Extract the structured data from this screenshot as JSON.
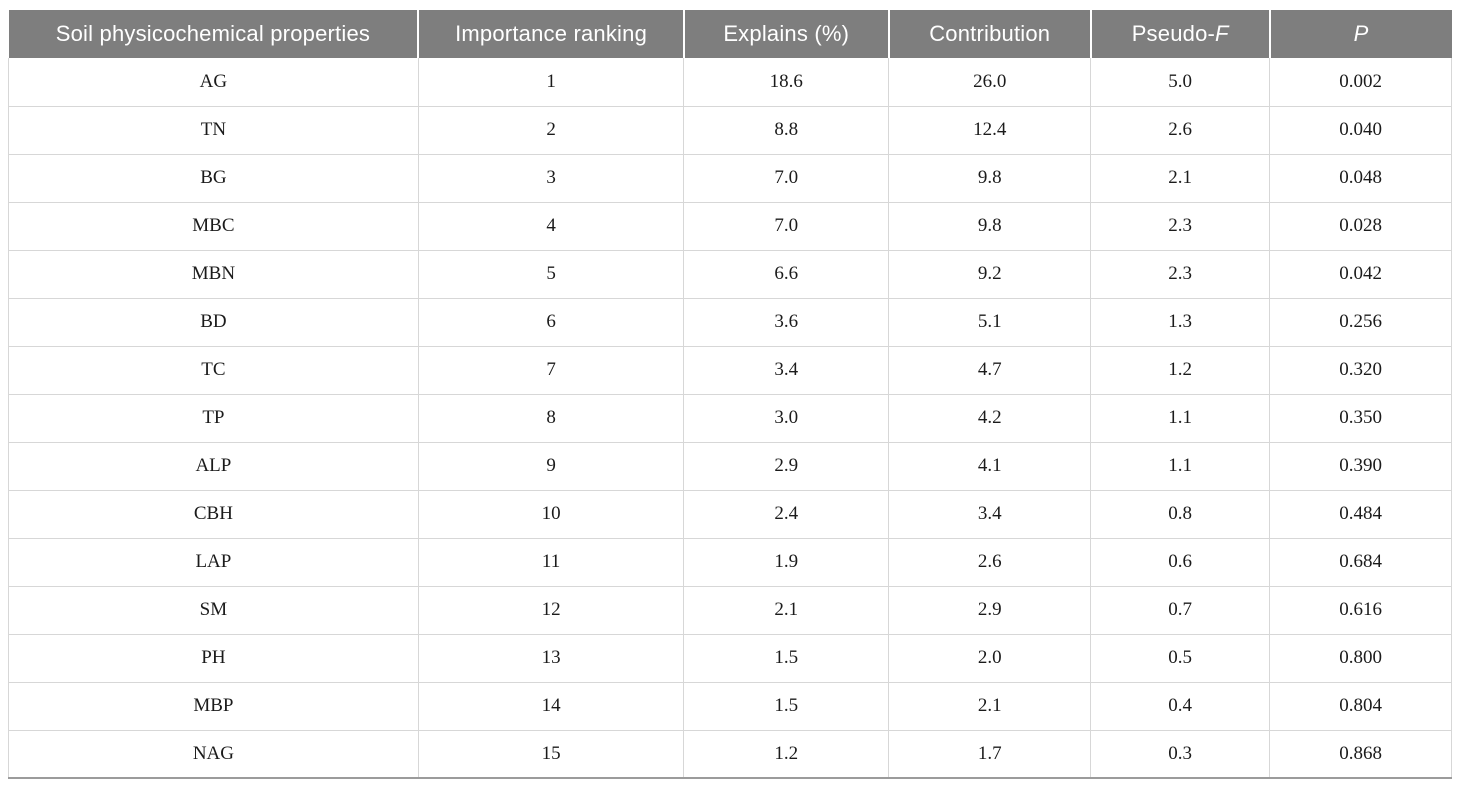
{
  "page": {
    "background_color": "#ffffff"
  },
  "table": {
    "header_bg": "#7e7e7e",
    "header_text_color": "#ffffff",
    "columns": [
      {
        "label": "Soil physicochemical properties"
      },
      {
        "label": "Importance ranking"
      },
      {
        "label": "Explains (%)"
      },
      {
        "label": "Contribution"
      },
      {
        "label_prefix": "Pseudo-",
        "label_italic": "F"
      },
      {
        "label_italic": "P"
      }
    ],
    "rows": [
      [
        "AG",
        "1",
        "18.6",
        "26.0",
        "5.0",
        "0.002"
      ],
      [
        "TN",
        "2",
        "8.8",
        "12.4",
        "2.6",
        "0.040"
      ],
      [
        "BG",
        "3",
        "7.0",
        "9.8",
        "2.1",
        "0.048"
      ],
      [
        "MBC",
        "4",
        "7.0",
        "9.8",
        "2.3",
        "0.028"
      ],
      [
        "MBN",
        "5",
        "6.6",
        "9.2",
        "2.3",
        "0.042"
      ],
      [
        "BD",
        "6",
        "3.6",
        "5.1",
        "1.3",
        "0.256"
      ],
      [
        "TC",
        "7",
        "3.4",
        "4.7",
        "1.2",
        "0.320"
      ],
      [
        "TP",
        "8",
        "3.0",
        "4.2",
        "1.1",
        "0.350"
      ],
      [
        "ALP",
        "9",
        "2.9",
        "4.1",
        "1.1",
        "0.390"
      ],
      [
        "CBH",
        "10",
        "2.4",
        "3.4",
        "0.8",
        "0.484"
      ],
      [
        "LAP",
        "11",
        "1.9",
        "2.6",
        "0.6",
        "0.684"
      ],
      [
        "SM",
        "12",
        "2.1",
        "2.9",
        "0.7",
        "0.616"
      ],
      [
        "PH",
        "13",
        "1.5",
        "2.0",
        "0.5",
        "0.800"
      ],
      [
        "MBP",
        "14",
        "1.5",
        "2.1",
        "0.4",
        "0.804"
      ],
      [
        "NAG",
        "15",
        "1.2",
        "1.7",
        "0.3",
        "0.868"
      ]
    ]
  }
}
